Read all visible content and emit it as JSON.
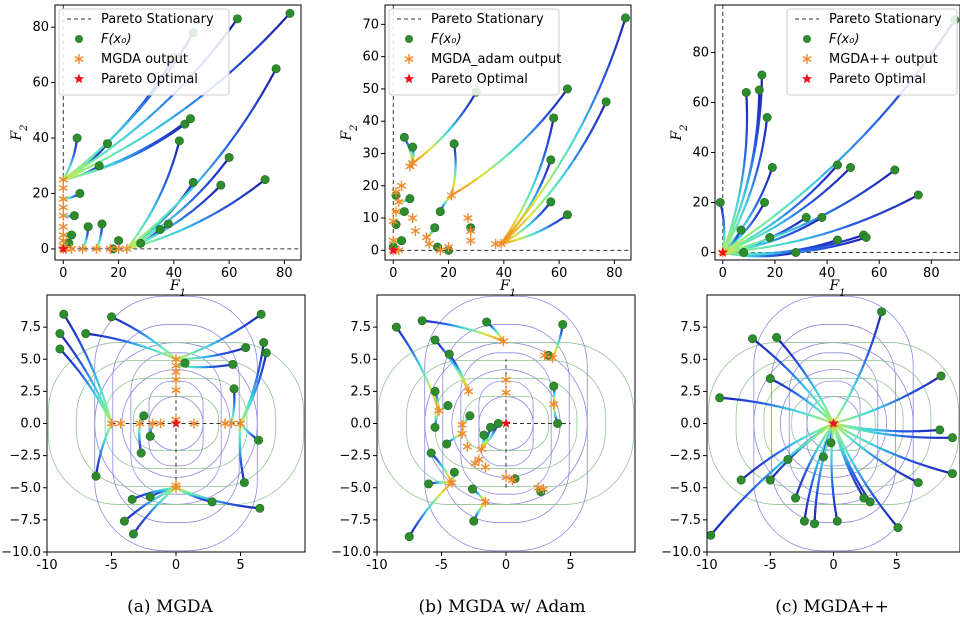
{
  "legend": {
    "pareto_stationary": "Pareto Stationary",
    "fx0": "F(x₀)",
    "pareto_optimal": "Pareto Optimal"
  },
  "colors": {
    "init_point": "#2e8b2e",
    "output_star": "#f08a2c",
    "optimal_star": "#e8141c",
    "stationary_line": "#333333",
    "trajectory_start": "#1a1aa8",
    "trajectory_end": "#7ff2c8",
    "contour_blue": "#8a8ae0",
    "contour_green": "#8fc48f"
  },
  "captions": [
    "(a) MGDA",
    "(b) MGDA w/ Adam",
    "(c) MGDA++"
  ],
  "chart_data": [
    {
      "type": "scatter",
      "panel": "a-top",
      "xlabel": "F1",
      "ylabel": "F2",
      "xlim": [
        -3,
        86
      ],
      "ylim": [
        -4,
        88
      ],
      "xticks": [
        0,
        20,
        40,
        60,
        80
      ],
      "yticks": [
        0,
        20,
        40,
        60,
        80
      ],
      "output_legend": "MGDA output",
      "initial_points": [
        [
          5,
          40
        ],
        [
          16,
          38
        ],
        [
          13,
          30
        ],
        [
          6,
          20
        ],
        [
          4,
          12
        ],
        [
          3,
          5
        ],
        [
          9,
          8
        ],
        [
          2,
          2
        ],
        [
          14,
          9
        ],
        [
          20,
          3
        ],
        [
          18,
          0
        ],
        [
          28,
          2
        ],
        [
          35,
          7
        ],
        [
          38,
          9
        ],
        [
          42,
          39
        ],
        [
          44,
          45
        ],
        [
          46,
          47
        ],
        [
          47,
          24
        ],
        [
          57,
          23
        ],
        [
          60,
          33
        ],
        [
          63,
          83
        ],
        [
          40,
          69
        ],
        [
          82,
          85
        ],
        [
          73,
          25
        ],
        [
          77,
          65
        ],
        [
          47,
          78
        ]
      ],
      "outputs": [
        [
          0,
          0
        ],
        [
          0,
          1
        ],
        [
          0,
          3
        ],
        [
          0,
          5
        ],
        [
          0,
          8
        ],
        [
          0,
          12
        ],
        [
          0,
          15
        ],
        [
          0,
          18
        ],
        [
          0,
          22
        ],
        [
          0,
          25
        ],
        [
          1,
          0
        ],
        [
          3,
          0
        ],
        [
          7,
          0
        ],
        [
          12,
          0
        ],
        [
          17,
          0
        ],
        [
          20,
          0
        ],
        [
          23,
          0
        ]
      ],
      "optimal": [
        [
          0,
          0
        ]
      ]
    },
    {
      "type": "scatter",
      "panel": "b-top",
      "xlabel": "F1",
      "ylabel": "F2",
      "xlim": [
        -3,
        86
      ],
      "ylim": [
        -3,
        76
      ],
      "xticks": [
        0,
        20,
        40,
        60,
        80
      ],
      "yticks": [
        0,
        10,
        20,
        30,
        40,
        50,
        60,
        70
      ],
      "output_legend": "MGDA_adam output",
      "initial_points": [
        [
          4,
          35
        ],
        [
          7,
          32
        ],
        [
          6,
          16
        ],
        [
          1,
          17
        ],
        [
          4,
          12
        ],
        [
          1,
          8
        ],
        [
          3,
          3
        ],
        [
          0,
          1
        ],
        [
          15,
          7
        ],
        [
          17,
          12
        ],
        [
          22,
          33
        ],
        [
          20,
          0
        ],
        [
          16,
          1
        ],
        [
          28,
          7
        ],
        [
          57,
          15
        ],
        [
          57,
          28
        ],
        [
          63,
          11
        ],
        [
          58,
          41
        ],
        [
          77,
          46
        ],
        [
          63,
          50
        ],
        [
          84,
          72
        ],
        [
          30,
          49
        ]
      ],
      "outputs": [
        [
          0,
          0
        ],
        [
          0,
          9
        ],
        [
          1,
          12
        ],
        [
          2,
          15
        ],
        [
          1,
          18
        ],
        [
          3,
          20
        ],
        [
          0,
          3
        ],
        [
          2,
          0
        ],
        [
          7,
          10
        ],
        [
          8,
          6
        ],
        [
          12,
          4
        ],
        [
          13,
          2
        ],
        [
          17,
          0
        ],
        [
          21,
          17
        ],
        [
          20,
          1
        ],
        [
          28,
          3
        ],
        [
          28,
          6
        ],
        [
          37,
          2
        ],
        [
          39,
          2
        ],
        [
          27,
          10
        ],
        [
          7,
          27
        ],
        [
          6,
          26
        ]
      ],
      "optimal": [
        [
          0,
          0
        ]
      ]
    },
    {
      "type": "scatter",
      "panel": "c-top",
      "xlabel": "F1",
      "ylabel": "F2",
      "xlim": [
        -3,
        91
      ],
      "ylim": [
        -3,
        99
      ],
      "xticks": [
        0,
        20,
        40,
        60,
        80
      ],
      "yticks": [
        0,
        20,
        40,
        60,
        80
      ],
      "output_legend": "MGDA++ output",
      "initial_points": [
        [
          15,
          71
        ],
        [
          9,
          64
        ],
        [
          14,
          65
        ],
        [
          17,
          54
        ],
        [
          19,
          34
        ],
        [
          -1,
          20
        ],
        [
          16,
          20
        ],
        [
          7,
          9
        ],
        [
          18,
          6
        ],
        [
          32,
          14
        ],
        [
          38,
          14
        ],
        [
          44,
          35
        ],
        [
          49,
          34
        ],
        [
          66,
          33
        ],
        [
          75,
          23
        ],
        [
          54,
          7
        ],
        [
          55,
          6
        ],
        [
          28,
          0
        ],
        [
          8,
          0
        ],
        [
          44,
          5
        ],
        [
          89,
          93
        ]
      ],
      "outputs": [
        [
          0,
          0
        ]
      ],
      "optimal": [
        [
          0,
          0
        ]
      ]
    },
    {
      "type": "scatter",
      "panel": "a-bottom",
      "xlim": [
        -10,
        10
      ],
      "ylim": [
        -10,
        10
      ],
      "xticks": [
        -10,
        -5,
        0,
        5
      ],
      "yticks": [
        -10.0,
        -7.5,
        -5.0,
        -2.5,
        0.0,
        2.5,
        5.0,
        7.5
      ],
      "initial_points": [
        [
          -8.7,
          8.5
        ],
        [
          -9.0,
          7.0
        ],
        [
          -9.0,
          5.8
        ],
        [
          -7.0,
          7.0
        ],
        [
          -5.0,
          8.3
        ],
        [
          -2.5,
          0.6
        ],
        [
          -2.7,
          -2.3
        ],
        [
          -6.2,
          -4.1
        ],
        [
          -3.4,
          -5.9
        ],
        [
          -2.0,
          -5.7
        ],
        [
          -4.0,
          -7.6
        ],
        [
          -3.3,
          -8.6
        ],
        [
          -2.0,
          -1.0
        ],
        [
          2.8,
          -6.1
        ],
        [
          4.4,
          4.6
        ],
        [
          5.4,
          5.9
        ],
        [
          6.8,
          6.3
        ],
        [
          6.6,
          8.5
        ],
        [
          7.0,
          5.5
        ],
        [
          4.5,
          2.7
        ],
        [
          6.4,
          -1.3
        ],
        [
          5.3,
          -4.6
        ],
        [
          6.5,
          -6.6
        ],
        [
          0.7,
          4.7
        ]
      ],
      "outputs": [
        [
          0,
          0.3
        ],
        [
          0,
          5.0
        ],
        [
          0,
          4.5
        ],
        [
          0,
          4.0
        ],
        [
          0,
          3.4
        ],
        [
          0,
          2.6
        ],
        [
          -5.0,
          0
        ],
        [
          -4.3,
          0
        ],
        [
          -2.8,
          0
        ],
        [
          -1.8,
          0
        ],
        [
          -1.2,
          0
        ],
        [
          1.4,
          0
        ],
        [
          3.8,
          0
        ],
        [
          4.3,
          0
        ],
        [
          5.0,
          0
        ],
        [
          0,
          -4.8
        ],
        [
          0,
          -5.0
        ]
      ],
      "optimal": [
        [
          0,
          0
        ]
      ],
      "stationary_segments": [
        [
          [
            -5,
            0
          ],
          [
            5,
            0
          ]
        ],
        [
          [
            0,
            -5
          ],
          [
            0,
            5
          ]
        ]
      ]
    },
    {
      "type": "scatter",
      "panel": "b-bottom",
      "xlim": [
        -10,
        10
      ],
      "ylim": [
        -10,
        10
      ],
      "xticks": [
        -10,
        -5,
        0,
        5
      ],
      "yticks": [
        -10.0,
        -7.5,
        -5.0,
        -2.5,
        0.0,
        2.5,
        5.0,
        7.5
      ],
      "initial_points": [
        [
          -8.5,
          7.5
        ],
        [
          -6.5,
          8.0
        ],
        [
          -5.5,
          6.5
        ],
        [
          -4.4,
          5.4
        ],
        [
          -1.5,
          7.9
        ],
        [
          -5.5,
          2.5
        ],
        [
          -4.5,
          1.4
        ],
        [
          -5.5,
          -0.3
        ],
        [
          -5.8,
          -2.3
        ],
        [
          -6.0,
          -4.7
        ],
        [
          -4.6,
          -1.6
        ],
        [
          -4.0,
          -3.8
        ],
        [
          -2.6,
          -5.1
        ],
        [
          -2.5,
          -7.6
        ],
        [
          -1.7,
          -0.9
        ],
        [
          -1.2,
          -0.3
        ],
        [
          -0.6,
          0.0
        ],
        [
          0.7,
          -4.3
        ],
        [
          2.7,
          -5.3
        ],
        [
          3.7,
          2.9
        ],
        [
          3.3,
          5.3
        ],
        [
          4.4,
          7.7
        ],
        [
          4.0,
          0.0
        ],
        [
          -7.5,
          -8.8
        ],
        [
          -2.8,
          0.6
        ]
      ],
      "outputs": [
        [
          -0.2,
          6.4
        ],
        [
          0,
          3.4
        ],
        [
          0,
          2.4
        ],
        [
          -2.9,
          2.5
        ],
        [
          -5.2,
          1.0
        ],
        [
          -3.0,
          -1.8
        ],
        [
          -3.4,
          -0.8
        ],
        [
          -2.1,
          -2.8
        ],
        [
          -2.4,
          -3.1
        ],
        [
          -1.6,
          -3.4
        ],
        [
          -4.2,
          -4.6
        ],
        [
          -1.6,
          -6.1
        ],
        [
          0,
          -4.2
        ],
        [
          0.5,
          -4.4
        ],
        [
          2.9,
          -5.1
        ],
        [
          2.5,
          -5.0
        ],
        [
          3.7,
          1.5
        ],
        [
          3.6,
          5.1
        ],
        [
          3.0,
          5.3
        ],
        [
          -1.9,
          -2.0
        ],
        [
          -3.4,
          -0.1
        ]
      ],
      "optimal": [
        [
          0,
          0
        ]
      ],
      "stationary_segments": [
        [
          [
            0,
            0
          ],
          [
            5,
            0
          ]
        ],
        [
          [
            0,
            -5
          ],
          [
            0,
            5
          ]
        ]
      ]
    },
    {
      "type": "scatter",
      "panel": "c-bottom",
      "xlim": [
        -10,
        10
      ],
      "ylim": [
        -10,
        10
      ],
      "xticks": [
        -10,
        -5,
        0,
        5
      ],
      "yticks": [
        -10.0,
        -7.5,
        -5.0,
        -2.5,
        0.0,
        2.5,
        5.0,
        7.5
      ],
      "initial_points": [
        [
          -6.4,
          6.6
        ],
        [
          -4.5,
          6.7
        ],
        [
          -9.0,
          2.0
        ],
        [
          -7.3,
          -4.4
        ],
        [
          -5.0,
          -4.4
        ],
        [
          -3.6,
          -2.8
        ],
        [
          -3.0,
          -5.8
        ],
        [
          -2.3,
          -7.6
        ],
        [
          -0.8,
          -2.6
        ],
        [
          -1.5,
          -7.8
        ],
        [
          -0.2,
          -1.5
        ],
        [
          2.4,
          -5.8
        ],
        [
          2.9,
          -6.1
        ],
        [
          5.1,
          -8.1
        ],
        [
          6.7,
          -4.6
        ],
        [
          9.4,
          -1.1
        ],
        [
          9.4,
          -3.9
        ],
        [
          8.5,
          3.7
        ],
        [
          8.4,
          -0.5
        ],
        [
          3.8,
          8.7
        ],
        [
          -9.7,
          -8.7
        ],
        [
          0.3,
          -7.6
        ],
        [
          -5.0,
          3.5
        ]
      ],
      "outputs": [
        [
          0,
          0
        ]
      ],
      "optimal": [
        [
          0,
          0
        ]
      ]
    }
  ]
}
